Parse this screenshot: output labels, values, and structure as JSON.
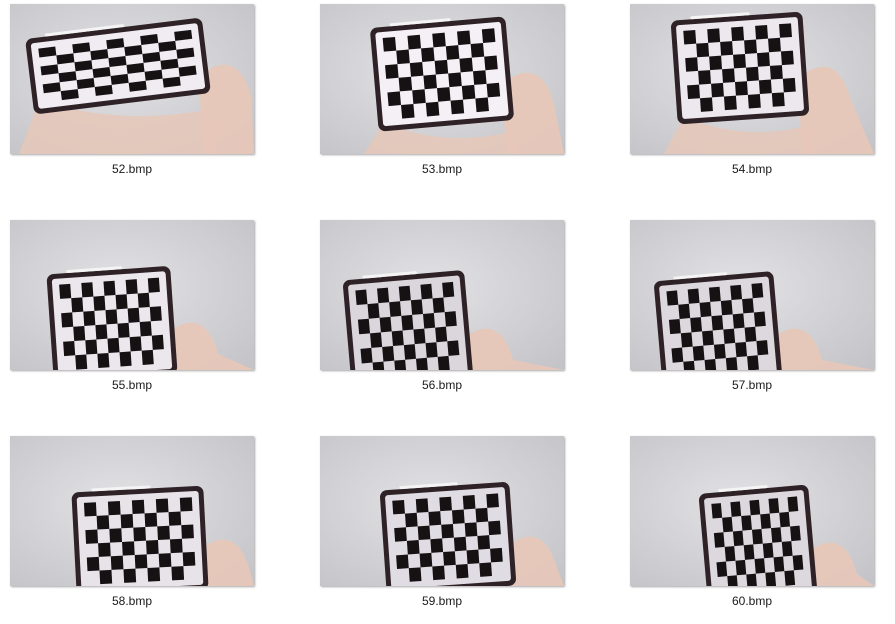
{
  "files": [
    {
      "name": "52.bmp",
      "icon": "checkerboard-photo-icon"
    },
    {
      "name": "53.bmp",
      "icon": "checkerboard-photo-icon"
    },
    {
      "name": "54.bmp",
      "icon": "checkerboard-photo-icon"
    },
    {
      "name": "55.bmp",
      "icon": "checkerboard-photo-icon"
    },
    {
      "name": "56.bmp",
      "icon": "checkerboard-photo-icon"
    },
    {
      "name": "57.bmp",
      "icon": "checkerboard-photo-icon"
    },
    {
      "name": "58.bmp",
      "icon": "checkerboard-photo-icon"
    },
    {
      "name": "59.bmp",
      "icon": "checkerboard-photo-icon"
    },
    {
      "name": "60.bmp",
      "icon": "checkerboard-photo-icon"
    }
  ],
  "colors": {
    "wall": "#d3d3d6",
    "frame": "#2e2226",
    "screen": "#ece8ee",
    "square": "#161214",
    "skin": "#e6c7b8"
  }
}
